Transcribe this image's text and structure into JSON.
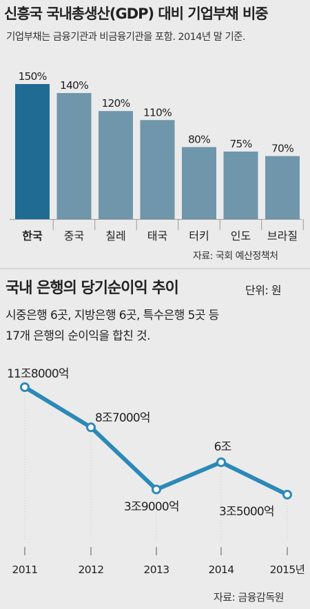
{
  "chart1": {
    "title": "신흥국 국내총생산(GDP) 대비 기업부채 비중",
    "subtitle": "기업부채는 금융기관과 비금융기관을 포함. 2014년 말 기준.",
    "source": "자료: 국회 예산정책처",
    "colors": {
      "highlight": "#1f6b93",
      "default": "#6f96ab",
      "axis": "#9a9a9a"
    }
  },
  "chart2": {
    "title": "국내 은행의 당기순이익 추이",
    "unit": "단위: 원",
    "description_line1": "시중은행 6곳, 지방은행 6곳, 특수은행 5곳 등",
    "description_line2": "17개 은행의 순이익을 합친 것.",
    "source": "자료: 금융감독원",
    "colors": {
      "line": "#2b89b8",
      "marker_fill": "#ffffff",
      "tick": "#888888"
    }
  },
  "chart_data": [
    {
      "type": "bar",
      "title": "신흥국 국내총생산(GDP) 대비 기업부채 비중",
      "subtitle": "기업부채는 금융기관과 비금융기관을 포함. 2014년 말 기준.",
      "categories": [
        "한국",
        "중국",
        "칠레",
        "태국",
        "터키",
        "인도",
        "브라질"
      ],
      "values": [
        150,
        140,
        120,
        110,
        80,
        75,
        70
      ],
      "value_labels": [
        "150%",
        "140%",
        "120%",
        "110%",
        "80%",
        "75%",
        "70%"
      ],
      "highlight_index": 0,
      "ylim": [
        0,
        150
      ],
      "grid": false
    },
    {
      "type": "line",
      "title": "국내 은행의 당기순이익 추이",
      "x": [
        "2011",
        "2012",
        "2013",
        "2014",
        "2015년"
      ],
      "values": [
        11.8,
        8.7,
        3.9,
        6.0,
        3.5
      ],
      "value_labels": [
        "11조8000억",
        "8조7000억",
        "3조9000억",
        "6조",
        "3조5000억"
      ],
      "ylim": [
        3.5,
        11.8
      ],
      "grid": false
    }
  ]
}
